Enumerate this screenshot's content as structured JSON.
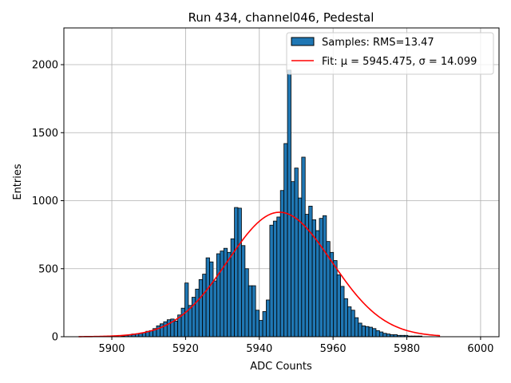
{
  "chart_data": {
    "type": "bar",
    "title": "Run 434, channel046, Pedestal",
    "xlabel": "ADC Counts",
    "ylabel": "Entries",
    "xlim": [
      5887,
      6005
    ],
    "ylim": [
      0,
      2270
    ],
    "xticks": [
      5900,
      5920,
      5940,
      5960,
      5980,
      6000
    ],
    "yticks": [
      0,
      500,
      1000,
      1500,
      2000
    ],
    "grid": true,
    "legend_position": "top-right",
    "bar_color": "#1f77b4",
    "fit_color": "#ff0000",
    "histogram": {
      "name": "Samples: RMS=13.47",
      "bin_width": 0.96,
      "bin_start": 5891.0,
      "values": [
        0,
        0,
        0,
        0,
        0,
        0,
        0,
        0,
        0,
        0,
        0,
        0,
        5,
        10,
        15,
        20,
        20,
        25,
        30,
        40,
        45,
        60,
        80,
        95,
        110,
        125,
        130,
        115,
        160,
        210,
        395,
        230,
        290,
        350,
        420,
        460,
        580,
        550,
        410,
        610,
        630,
        650,
        620,
        720,
        950,
        945,
        670,
        500,
        375,
        375,
        195,
        120,
        185,
        270,
        820,
        850,
        880,
        1075,
        1420,
        1960,
        1140,
        1240,
        1020,
        1320,
        900,
        960,
        860,
        780,
        870,
        890,
        700,
        620,
        560,
        455,
        370,
        280,
        220,
        195,
        140,
        100,
        80,
        75,
        70,
        60,
        45,
        35,
        25,
        20,
        15,
        15,
        10,
        10,
        10,
        5,
        5,
        5,
        5
      ]
    },
    "fit": {
      "name": "Fit: μ = 5945.475, σ = 14.099",
      "mu": 5945.475,
      "sigma": 14.099,
      "amplitude": 915,
      "x_range": [
        5891,
        5989
      ]
    }
  }
}
